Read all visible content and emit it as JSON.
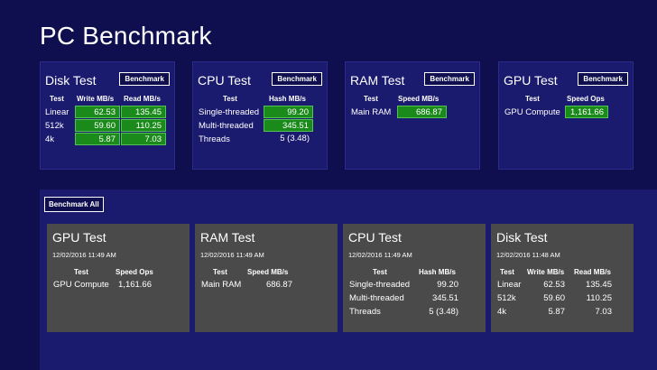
{
  "app": {
    "title": "PC Benchmark"
  },
  "tiles": {
    "disk": {
      "title": "Disk Test",
      "button": "Benchmark",
      "headers": [
        "Test",
        "Write MB/s",
        "Read MB/s"
      ],
      "rows": [
        {
          "label": "Linear",
          "write": "62.53",
          "read": "135.45"
        },
        {
          "label": "512k",
          "write": "59.60",
          "read": "110.25"
        },
        {
          "label": "4k",
          "write": "5.87",
          "read": "7.03"
        }
      ]
    },
    "cpu": {
      "title": "CPU Test",
      "button": "Benchmark",
      "headers": [
        "Test",
        "Hash MB/s"
      ],
      "rows": [
        {
          "label": "Single-threaded",
          "value": "99.20"
        },
        {
          "label": "Multi-threaded",
          "value": "345.51"
        },
        {
          "label": "Threads",
          "value": "5 (3.48)"
        }
      ]
    },
    "ram": {
      "title": "RAM Test",
      "button": "Benchmark",
      "headers": [
        "Test",
        "Speed MB/s"
      ],
      "rows": [
        {
          "label": "Main RAM",
          "value": "686.87"
        }
      ]
    },
    "gpu": {
      "title": "GPU Test",
      "button": "Benchmark",
      "headers": [
        "Test",
        "Speed Ops"
      ],
      "rows": [
        {
          "label": "GPU Compute",
          "value": "1,161.66"
        }
      ]
    }
  },
  "history": {
    "button": "Benchmark All",
    "gpu": {
      "title": "GPU Test",
      "date": "12/02/2016 11:49 AM",
      "headers": [
        "Test",
        "Speed Ops"
      ],
      "rows": [
        {
          "label": "GPU Compute",
          "value": "1,161.66"
        }
      ]
    },
    "ram": {
      "title": "RAM Test",
      "date": "12/02/2016 11:49 AM",
      "headers": [
        "Test",
        "Speed MB/s"
      ],
      "rows": [
        {
          "label": "Main RAM",
          "value": "686.87"
        }
      ]
    },
    "cpu": {
      "title": "CPU Test",
      "date": "12/02/2016 11:49 AM",
      "headers": [
        "Test",
        "Hash MB/s"
      ],
      "rows": [
        {
          "label": "Single-threaded",
          "value": "99.20"
        },
        {
          "label": "Multi-threaded",
          "value": "345.51"
        },
        {
          "label": "Threads",
          "value": "5 (3.48)"
        }
      ]
    },
    "disk": {
      "title": "Disk Test",
      "date": "12/02/2016 11:48 AM",
      "headers": [
        "Test",
        "Write MB/s",
        "Read MB/s"
      ],
      "rows": [
        {
          "label": "Linear",
          "write": "62.53",
          "read": "135.45"
        },
        {
          "label": "512k",
          "write": "59.60",
          "read": "110.25"
        },
        {
          "label": "4k",
          "write": "5.87",
          "read": "7.03"
        }
      ]
    }
  },
  "colors": {
    "background": "#0f0f4f",
    "tile": "#1a1a6e",
    "highlight": "#1a8a1a",
    "card": "#4a4a4a"
  }
}
